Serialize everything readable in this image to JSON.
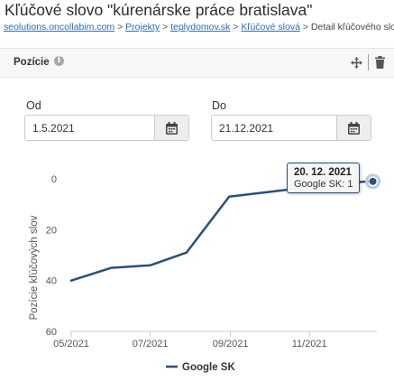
{
  "page": {
    "title": "Kľúčové slovo \"kúrenárske práce bratislava\""
  },
  "breadcrumb": {
    "items": [
      {
        "label": "seolutions.oncollabim.com",
        "link": true
      },
      {
        "label": "Projekty",
        "link": true
      },
      {
        "label": "teplydomov.sk",
        "link": true
      },
      {
        "label": "Kľúčové slová",
        "link": true
      },
      {
        "label": "Detail kľúčového slova",
        "link": false
      }
    ],
    "separator": ">"
  },
  "panel": {
    "title": "Pozície",
    "info_icon": "info-icon",
    "move_icon": "move-icon",
    "delete_icon": "trash-icon"
  },
  "filters": {
    "from_label": "Od",
    "from_value": "1.5.2021",
    "to_label": "Do",
    "to_value": "21.12.2021",
    "calendar_icon": "calendar-icon"
  },
  "tooltip": {
    "date": "20. 12. 2021",
    "series": "Google SK",
    "value": "1"
  },
  "chart_data": {
    "type": "line",
    "title": "",
    "xlabel": "",
    "ylabel": "Pozície kľúčových slov",
    "y_inverted": true,
    "ylim": [
      0,
      60
    ],
    "y_ticks": [
      0,
      20,
      40,
      60
    ],
    "x_range": [
      "2021-05-01",
      "2021-12-21"
    ],
    "x_ticks": [
      {
        "date": "2021-05-01",
        "label": "05/2021"
      },
      {
        "date": "2021-07-01",
        "label": "07/2021"
      },
      {
        "date": "2021-09-01",
        "label": "09/2021"
      },
      {
        "date": "2021-11-01",
        "label": "11/2021"
      }
    ],
    "grid": false,
    "legend": "bottom",
    "color": "#2d4f75",
    "series": [
      {
        "name": "Google SK",
        "points": [
          {
            "x": "2021-05-01",
            "y": 40
          },
          {
            "x": "2021-06-01",
            "y": 35
          },
          {
            "x": "2021-07-01",
            "y": 34
          },
          {
            "x": "2021-07-29",
            "y": 29
          },
          {
            "x": "2021-08-31",
            "y": 7
          },
          {
            "x": "2021-10-20",
            "y": 4
          },
          {
            "x": "2021-11-10",
            "y": 2
          },
          {
            "x": "2021-12-20",
            "y": 1
          }
        ]
      }
    ]
  }
}
